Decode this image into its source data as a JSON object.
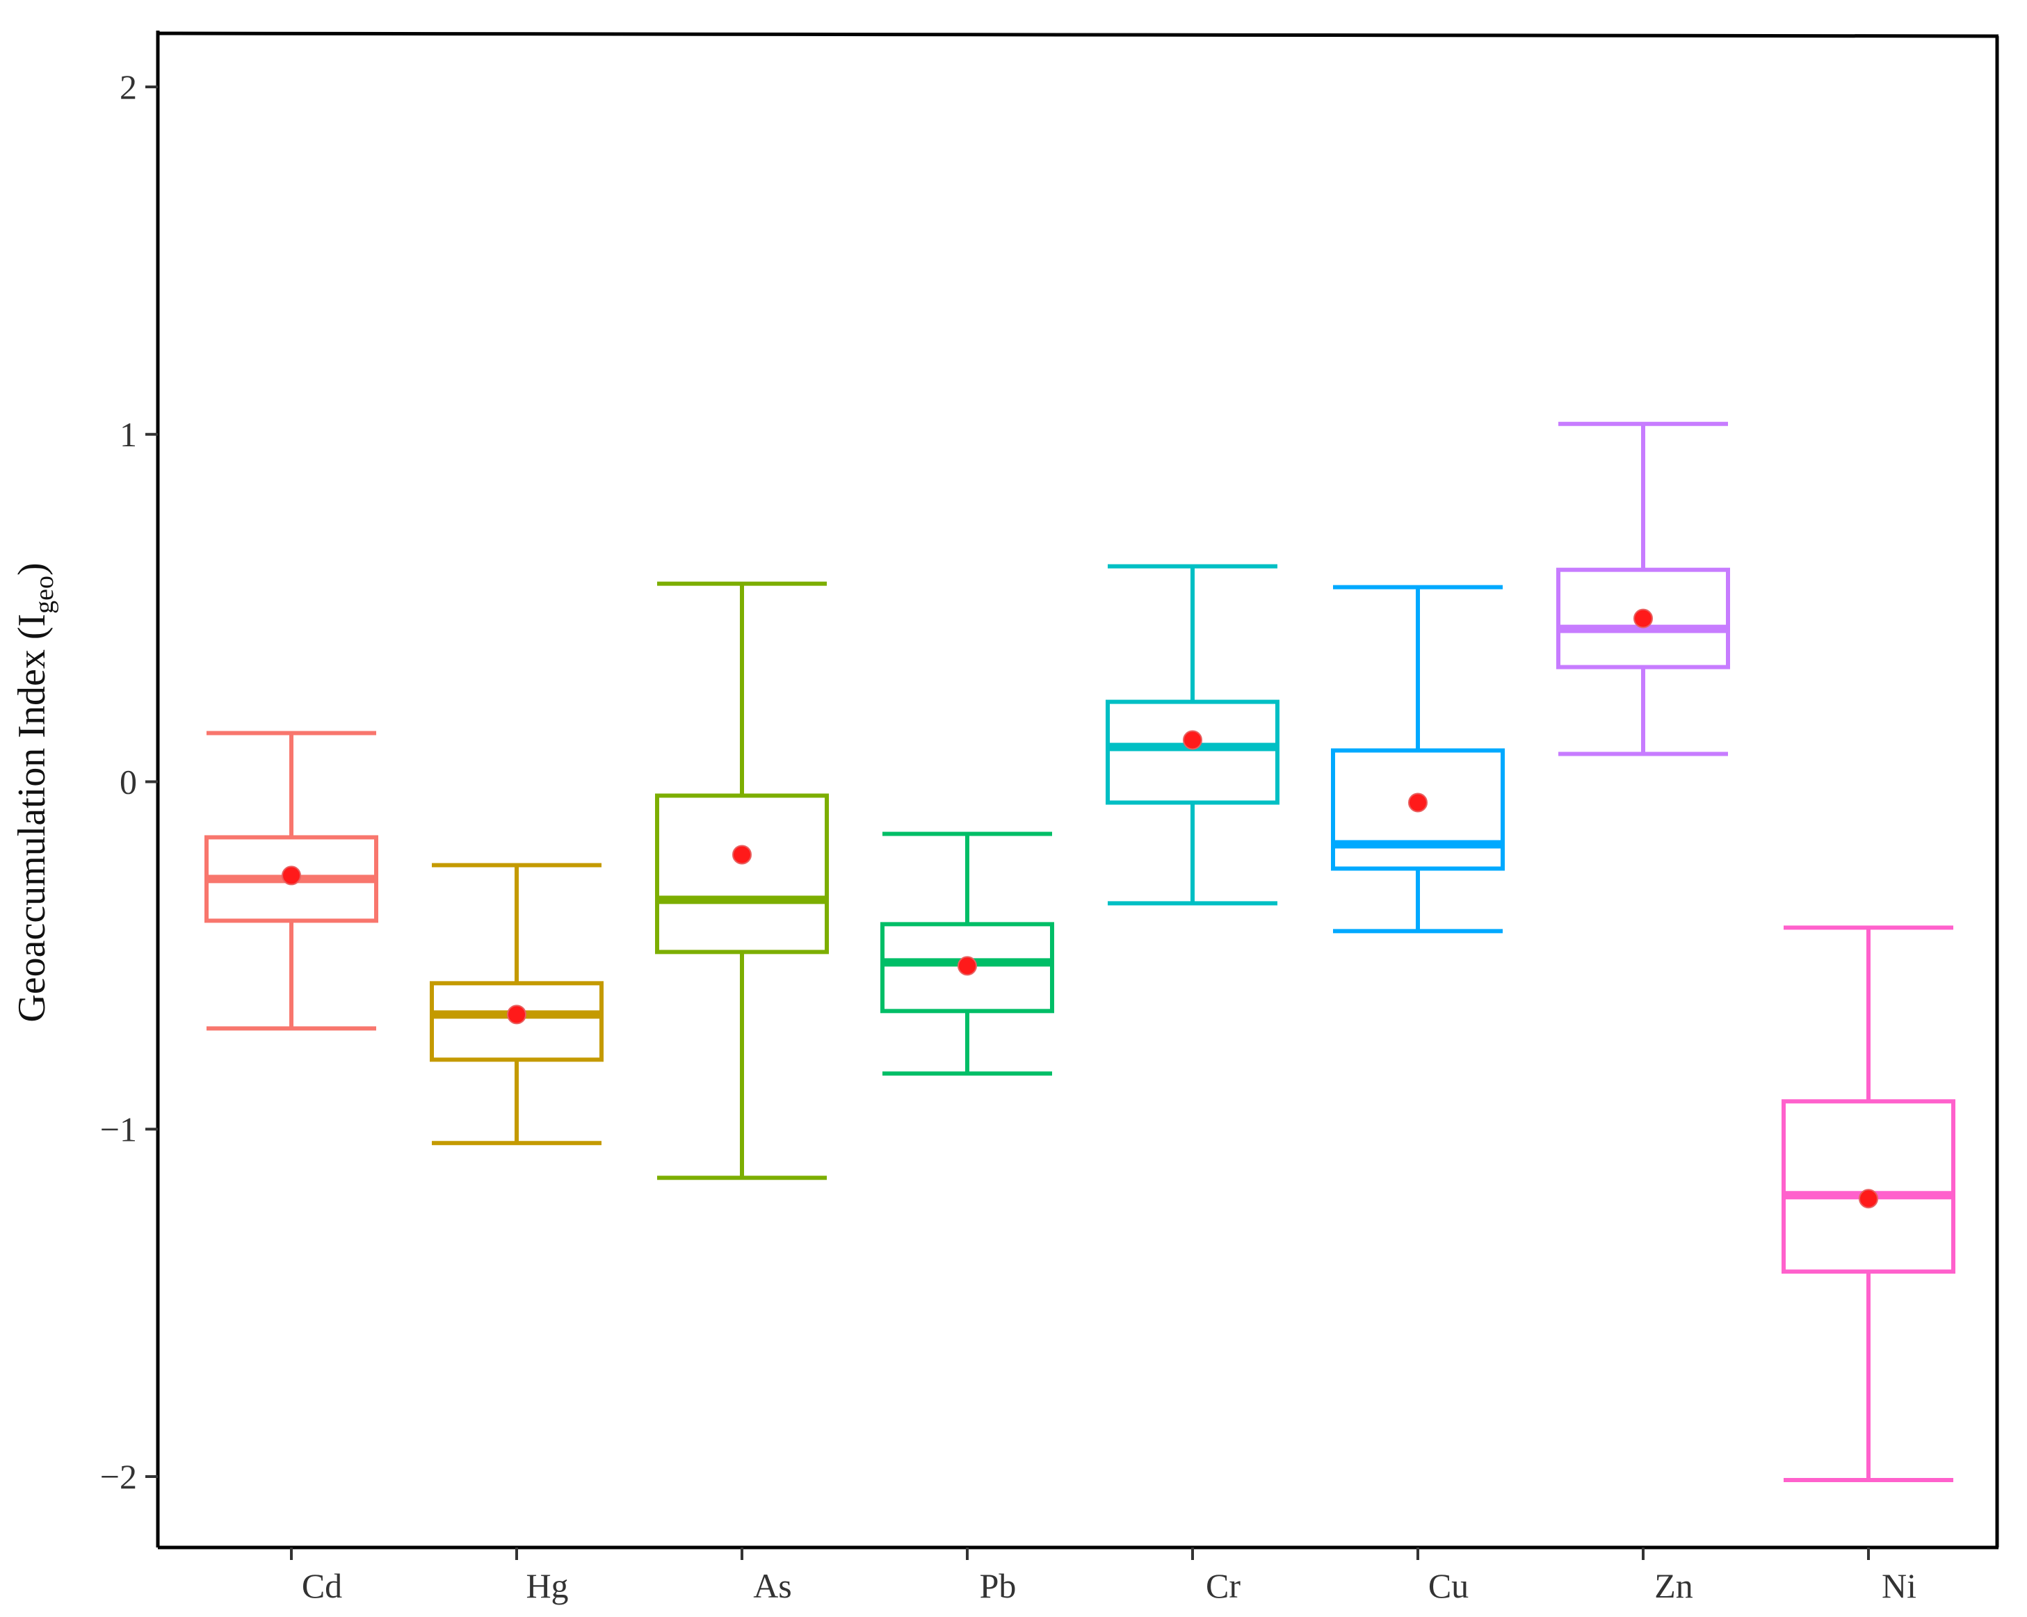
{
  "chart_data": {
    "type": "boxplot",
    "title": "",
    "xlabel": "",
    "ylabel": "Geoaccumulation Index (I",
    "ylabel_subscript": "geo",
    "ylabel_close": ")",
    "ylim": [
      -2.2,
      2.15
    ],
    "yticks": [
      -2,
      -1,
      0,
      1,
      2
    ],
    "ytick_labels": [
      "−2",
      "−1",
      "0",
      "1",
      "2"
    ],
    "grid": false,
    "legend": "none",
    "mean_marker_color": "#ff1a1a",
    "categories": [
      "Cd",
      "Hg",
      "As",
      "Pb",
      "Cr",
      "Cu",
      "Zn",
      "Ni"
    ],
    "boxes": [
      {
        "name": "Cd",
        "color": "#f8766d",
        "whisker_low": -0.71,
        "q1": -0.4,
        "median": -0.28,
        "q3": -0.16,
        "whisker_high": 0.14,
        "mean": -0.27
      },
      {
        "name": "Hg",
        "color": "#c49a00",
        "whisker_low": -1.04,
        "q1": -0.8,
        "median": -0.67,
        "q3": -0.58,
        "whisker_high": -0.24,
        "mean": -0.67
      },
      {
        "name": "As",
        "color": "#7cae00",
        "whisker_low": -1.14,
        "q1": -0.49,
        "median": -0.34,
        "q3": -0.04,
        "whisker_high": 0.57,
        "mean": -0.21
      },
      {
        "name": "Pb",
        "color": "#00be67",
        "whisker_low": -0.84,
        "q1": -0.66,
        "median": -0.52,
        "q3": -0.41,
        "whisker_high": -0.15,
        "mean": -0.53
      },
      {
        "name": "Cr",
        "color": "#00bfc4",
        "whisker_low": -0.35,
        "q1": -0.06,
        "median": 0.1,
        "q3": 0.23,
        "whisker_high": 0.62,
        "mean": 0.12
      },
      {
        "name": "Cu",
        "color": "#00a9ff",
        "whisker_low": -0.43,
        "q1": -0.25,
        "median": -0.18,
        "q3": 0.09,
        "whisker_high": 0.56,
        "mean": -0.06
      },
      {
        "name": "Zn",
        "color": "#c77cff",
        "whisker_low": 0.08,
        "q1": 0.33,
        "median": 0.44,
        "q3": 0.61,
        "whisker_high": 1.03,
        "mean": 0.47
      },
      {
        "name": "Ni",
        "color": "#ff61cc",
        "whisker_low": -2.01,
        "q1": -1.41,
        "median": -1.19,
        "q3": -0.92,
        "whisker_high": -0.42,
        "mean": -1.2
      }
    ]
  }
}
